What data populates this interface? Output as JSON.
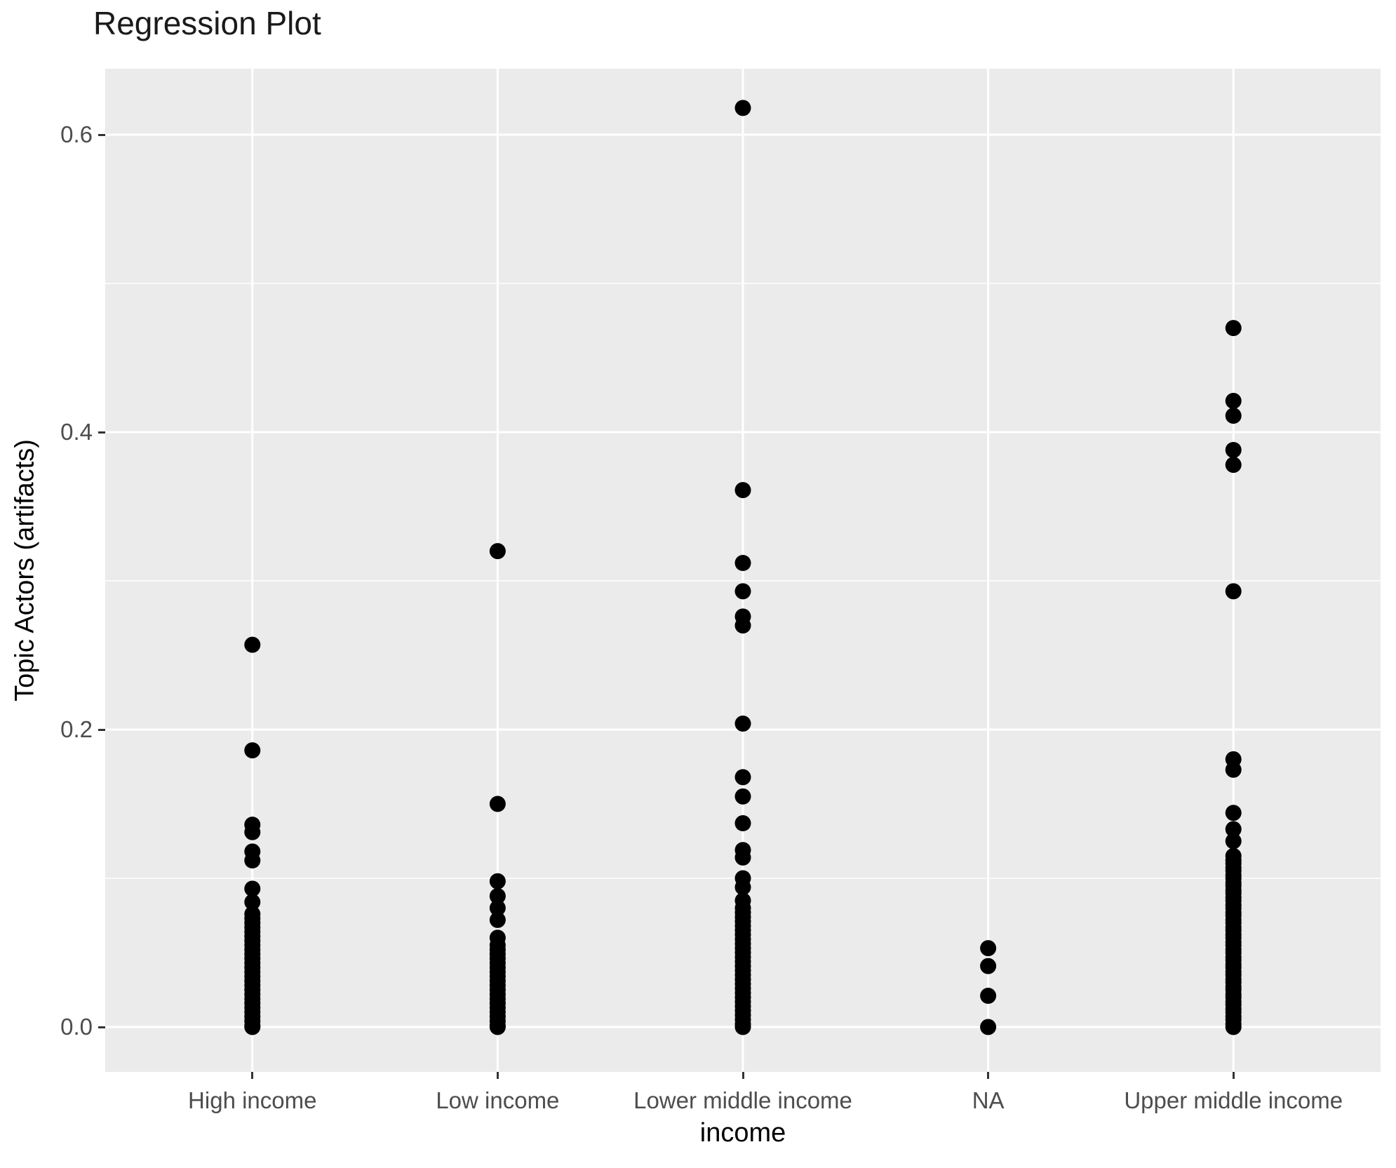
{
  "title": "Regression Plot",
  "axes": {
    "x_title": "income",
    "y_title": "Topic Actors (artifacts)",
    "y_tick_labels": [
      "0.0",
      "0.2",
      "0.4",
      "0.6"
    ],
    "x_tick_labels": [
      "High income",
      "Low income",
      "Lower middle income",
      "NA",
      "Upper middle income"
    ]
  },
  "colors": {
    "panel_background": "#EBEBEB",
    "gridline": "#FFFFFF",
    "point": "#000000",
    "axis_text": "#4D4D4D",
    "tick_mark": "#333333",
    "title_text": "#1A1A1A"
  },
  "chart_data": {
    "type": "scatter",
    "title": "Regression Plot",
    "xlabel": "income",
    "ylabel": "Topic Actors (artifacts)",
    "categories": [
      "High income",
      "Low income",
      "Lower middle income",
      "NA",
      "Upper middle income"
    ],
    "ylim": [
      -0.03,
      0.645
    ],
    "y_major_ticks": [
      0.0,
      0.2,
      0.4,
      0.6
    ],
    "y_minor_gridlines": [
      0.1,
      0.3,
      0.5
    ],
    "grid": true,
    "legend_position": "none",
    "series": [
      {
        "name": "High income",
        "values": [
          0.257,
          0.186,
          0.136,
          0.131,
          0.118,
          0.112,
          0.093,
          0.084,
          0.076,
          0.073,
          0.07,
          0.067,
          0.064,
          0.061,
          0.058,
          0.055,
          0.052,
          0.049,
          0.046,
          0.043,
          0.04,
          0.037,
          0.034,
          0.031,
          0.028,
          0.025,
          0.022,
          0.019,
          0.016,
          0.013,
          0.01,
          0.007,
          0.004,
          0.001,
          0.0
        ]
      },
      {
        "name": "Low income",
        "values": [
          0.32,
          0.15,
          0.098,
          0.088,
          0.08,
          0.072,
          0.06,
          0.055,
          0.052,
          0.049,
          0.046,
          0.043,
          0.04,
          0.037,
          0.034,
          0.031,
          0.028,
          0.025,
          0.022,
          0.019,
          0.016,
          0.013,
          0.01,
          0.007,
          0.004,
          0.001,
          0.0
        ]
      },
      {
        "name": "Lower middle income",
        "values": [
          0.618,
          0.361,
          0.312,
          0.293,
          0.276,
          0.27,
          0.204,
          0.168,
          0.155,
          0.137,
          0.119,
          0.114,
          0.1,
          0.094,
          0.085,
          0.08,
          0.077,
          0.074,
          0.071,
          0.068,
          0.065,
          0.062,
          0.059,
          0.056,
          0.053,
          0.05,
          0.047,
          0.044,
          0.041,
          0.038,
          0.035,
          0.032,
          0.029,
          0.026,
          0.023,
          0.02,
          0.017,
          0.014,
          0.011,
          0.008,
          0.005,
          0.002,
          0.0
        ]
      },
      {
        "name": "NA",
        "values": [
          0.053,
          0.041,
          0.021,
          0.0
        ]
      },
      {
        "name": "Upper middle income",
        "values": [
          0.47,
          0.421,
          0.411,
          0.388,
          0.378,
          0.293,
          0.18,
          0.173,
          0.144,
          0.133,
          0.125,
          0.115,
          0.112,
          0.11,
          0.107,
          0.105,
          0.102,
          0.1,
          0.097,
          0.095,
          0.092,
          0.09,
          0.087,
          0.085,
          0.082,
          0.08,
          0.077,
          0.075,
          0.072,
          0.07,
          0.067,
          0.065,
          0.062,
          0.06,
          0.057,
          0.055,
          0.052,
          0.05,
          0.047,
          0.045,
          0.042,
          0.04,
          0.037,
          0.035,
          0.032,
          0.03,
          0.027,
          0.025,
          0.022,
          0.02,
          0.017,
          0.015,
          0.012,
          0.01,
          0.007,
          0.005,
          0.002,
          0.0
        ]
      }
    ]
  }
}
